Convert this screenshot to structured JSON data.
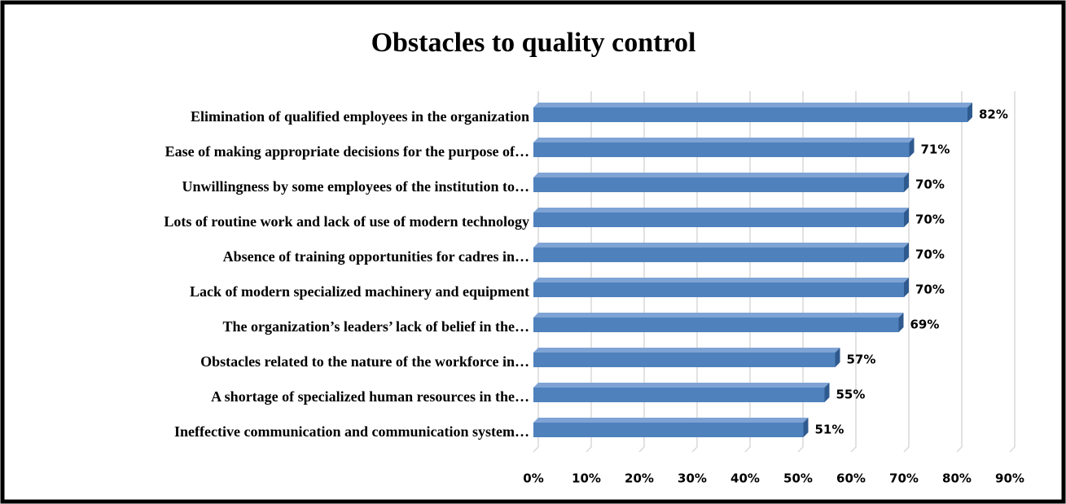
{
  "chart_data": {
    "type": "bar",
    "orientation": "horizontal",
    "title": "Obstacles to quality control",
    "categories": [
      "Elimination of qualified employees in the organization",
      "Ease of making appropriate decisions for the purpose of…",
      "Unwillingness by some employees of the institution to…",
      "Lots of routine work and lack of use of modern technology",
      "Absence of training opportunities for cadres in…",
      "Lack of modern specialized machinery and equipment",
      "The organization’s leaders’ lack of belief in the…",
      "Obstacles related to the nature of the workforce in…",
      "A shortage of specialized human resources in the…",
      "Ineffective communication and communication system…"
    ],
    "values": [
      82,
      71,
      70,
      70,
      70,
      70,
      69,
      57,
      55,
      51
    ],
    "value_labels": [
      "82%",
      "71%",
      "70%",
      "70%",
      "70%",
      "70%",
      "69%",
      "57%",
      "55%",
      "51%"
    ],
    "color": "#4f81bd",
    "xlim": [
      0,
      90
    ],
    "xticks": [
      {
        "value": 0,
        "label": "0%"
      },
      {
        "value": 10,
        "label": "10%"
      },
      {
        "value": 20,
        "label": "20%"
      },
      {
        "value": 30,
        "label": "30%"
      },
      {
        "value": 40,
        "label": "40%"
      },
      {
        "value": 50,
        "label": "50%"
      },
      {
        "value": 60,
        "label": "60%"
      },
      {
        "value": 70,
        "label": "70%"
      },
      {
        "value": 80,
        "label": "80%"
      },
      {
        "value": 90,
        "label": "90%"
      }
    ],
    "grid": true
  }
}
